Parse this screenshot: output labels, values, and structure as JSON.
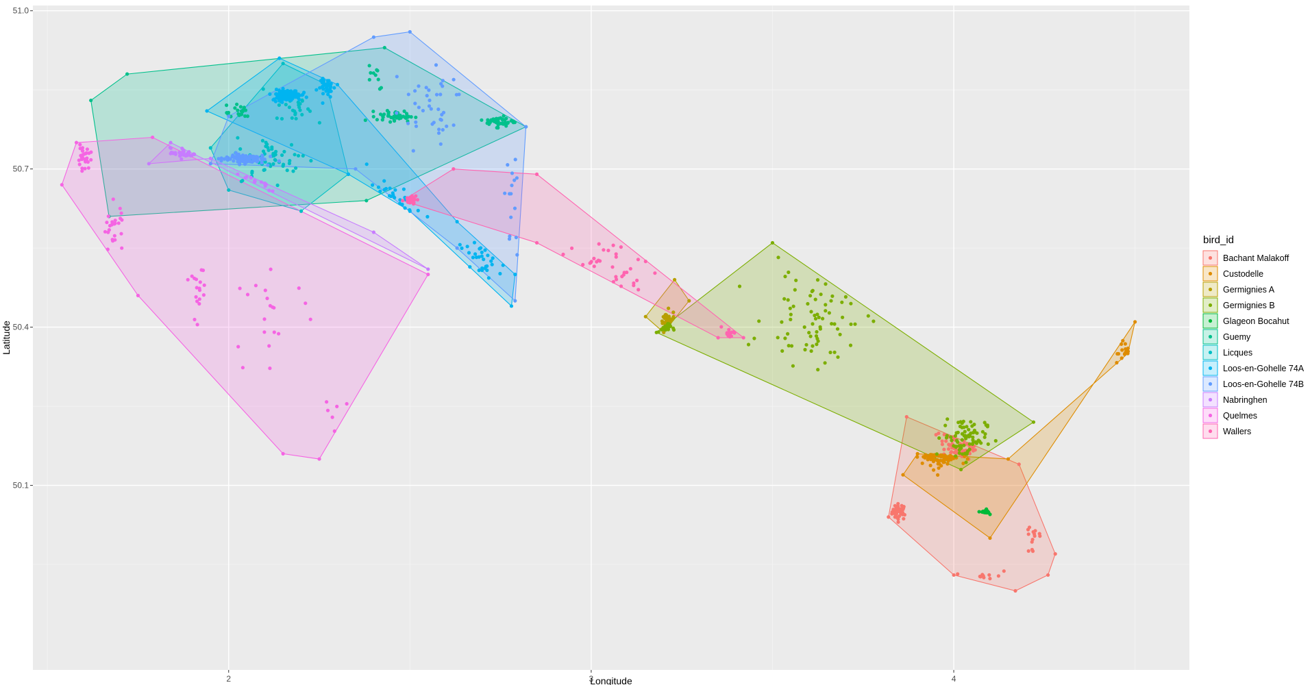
{
  "chart_data": {
    "type": "scatter",
    "subtype": "scatter with convex hull polygons per group",
    "xlabel": "Longitude",
    "ylabel": "Latitude",
    "xlim": [
      1.46,
      4.65
    ],
    "ylim": [
      49.75,
      51.01
    ],
    "x_ticks": [
      2,
      3,
      4
    ],
    "y_ticks": [
      50.1,
      50.4,
      50.7,
      51.0
    ],
    "x_tick_labels": [
      "2",
      "3",
      "4"
    ],
    "y_tick_labels": [
      "50.1",
      "50.4",
      "50.7",
      "51.0"
    ],
    "grid": true,
    "legend_title": "bird_id",
    "legend_position": "right",
    "series": [
      {
        "name": "Bachant Malakoff",
        "color": "#F8766D",
        "hull": [
          [
            3.82,
            50.04
          ],
          [
            3.87,
            50.23
          ],
          [
            4.18,
            50.14
          ],
          [
            4.28,
            49.97
          ],
          [
            4.26,
            49.93
          ],
          [
            4.17,
            49.9
          ],
          [
            4.0,
            49.93
          ]
        ],
        "clusters": [
          [
            3.85,
            50.05,
            0.02,
            0.015,
            40
          ],
          [
            4.02,
            50.18,
            0.06,
            0.03,
            60
          ],
          [
            4.22,
            50.0,
            0.03,
            0.04,
            14
          ],
          [
            4.08,
            49.93,
            0.08,
            0.01,
            10
          ]
        ]
      },
      {
        "name": "Custodelle",
        "color": "#DE8C00",
        "hull": [
          [
            3.86,
            50.12
          ],
          [
            4.1,
            50.0
          ],
          [
            4.5,
            50.41
          ],
          [
            4.48,
            50.35
          ],
          [
            4.15,
            50.15
          ],
          [
            3.9,
            50.16
          ]
        ],
        "clusters": [
          [
            3.97,
            50.18,
            0.05,
            0.03,
            70
          ],
          [
            4.47,
            50.32,
            0.03,
            0.07,
            16
          ],
          [
            4.22,
            50.24,
            0.02,
            0.02,
            5
          ]
        ]
      },
      {
        "name": "Germignies A",
        "color": "#B79F00",
        "hull": [
          [
            3.15,
            50.42
          ],
          [
            3.2,
            50.39
          ],
          [
            3.27,
            50.45
          ],
          [
            3.23,
            50.49
          ]
        ],
        "clusters": [
          [
            3.21,
            50.41,
            0.02,
            0.02,
            40
          ]
        ]
      },
      {
        "name": "Germignies B",
        "color": "#7CAE00",
        "hull": [
          [
            3.18,
            50.39
          ],
          [
            3.5,
            50.56
          ],
          [
            4.22,
            50.22
          ],
          [
            4.02,
            50.13
          ]
        ],
        "clusters": [
          [
            3.62,
            50.42,
            0.14,
            0.09,
            75
          ],
          [
            4.03,
            50.19,
            0.06,
            0.04,
            80
          ],
          [
            3.2,
            50.4,
            0.02,
            0.01,
            25
          ]
        ]
      },
      {
        "name": "Glageon Bocahut",
        "color": "#00BA38",
        "hull": [
          [
            4.07,
            50.05
          ],
          [
            4.1,
            50.045
          ],
          [
            4.09,
            50.055
          ]
        ],
        "clusters": [
          [
            4.09,
            50.05,
            0.01,
            0.003,
            40
          ]
        ]
      },
      {
        "name": "Guemy",
        "color": "#00C08B",
        "hull": [
          [
            1.62,
            50.83
          ],
          [
            1.72,
            50.88
          ],
          [
            2.43,
            50.93
          ],
          [
            2.82,
            50.78
          ],
          [
            2.38,
            50.64
          ],
          [
            1.67,
            50.61
          ]
        ],
        "clusters": [
          [
            2.46,
            50.8,
            0.05,
            0.01,
            45
          ],
          [
            2.75,
            50.79,
            0.04,
            0.01,
            45
          ],
          [
            2.02,
            50.81,
            0.05,
            0.02,
            20
          ],
          [
            2.4,
            50.88,
            0.03,
            0.03,
            10
          ]
        ]
      },
      {
        "name": "Licques",
        "color": "#00BFC4",
        "hull": [
          [
            1.95,
            50.74
          ],
          [
            2.15,
            50.9
          ],
          [
            2.27,
            50.86
          ],
          [
            2.33,
            50.69
          ],
          [
            2.2,
            50.62
          ],
          [
            2.0,
            50.66
          ]
        ],
        "clusters": [
          [
            2.12,
            50.72,
            0.1,
            0.04,
            60
          ],
          [
            2.18,
            50.82,
            0.05,
            0.03,
            30
          ]
        ]
      },
      {
        "name": "Loos-en-Gohelle 74A",
        "color": "#00B4F0",
        "hull": [
          [
            1.94,
            50.81
          ],
          [
            2.14,
            50.91
          ],
          [
            2.3,
            50.86
          ],
          [
            2.63,
            50.6
          ],
          [
            2.79,
            50.5
          ],
          [
            2.78,
            50.44
          ],
          [
            2.5,
            50.62
          ],
          [
            2.33,
            50.69
          ]
        ],
        "clusters": [
          [
            2.16,
            50.84,
            0.04,
            0.01,
            140
          ],
          [
            2.27,
            50.87,
            0.02,
            0.03,
            40
          ],
          [
            2.7,
            50.53,
            0.07,
            0.04,
            30
          ],
          [
            2.45,
            50.62,
            0.07,
            0.05,
            25
          ]
        ]
      },
      {
        "name": "Loos-en-Gohelle 74B",
        "color": "#619CFF",
        "hull": [
          [
            2.5,
            50.96
          ],
          [
            2.82,
            50.78
          ],
          [
            2.79,
            50.45
          ],
          [
            2.63,
            50.55
          ],
          [
            2.35,
            50.7
          ],
          [
            1.95,
            50.71
          ],
          [
            2.0,
            50.8
          ],
          [
            2.4,
            50.95
          ]
        ],
        "clusters": [
          [
            2.04,
            50.72,
            0.06,
            0.01,
            90
          ],
          [
            2.55,
            50.82,
            0.1,
            0.08,
            40
          ],
          [
            2.78,
            50.62,
            0.02,
            0.1,
            15
          ]
        ]
      },
      {
        "name": "Nabringhen",
        "color": "#C77CFF",
        "hull": [
          [
            1.78,
            50.71
          ],
          [
            1.84,
            50.75
          ],
          [
            2.55,
            50.51
          ],
          [
            2.4,
            50.58
          ],
          [
            1.95,
            50.72
          ]
        ],
        "clusters": [
          [
            1.88,
            50.73,
            0.04,
            0.01,
            35
          ],
          [
            1.69,
            50.66,
            0.02,
            0.02,
            45
          ],
          [
            2.14,
            50.7,
            0.09,
            0.03,
            30
          ],
          [
            1.72,
            50.62,
            0.02,
            0.01,
            15
          ]
        ]
      },
      {
        "name": "Quelmes",
        "color": "#F564E3",
        "hull": [
          [
            1.54,
            50.67
          ],
          [
            1.58,
            50.75
          ],
          [
            1.79,
            50.76
          ],
          [
            2.55,
            50.5
          ],
          [
            2.25,
            50.15
          ],
          [
            2.15,
            50.16
          ],
          [
            1.75,
            50.46
          ]
        ],
        "clusters": [
          [
            1.6,
            50.72,
            0.02,
            0.02,
            30
          ],
          [
            1.68,
            50.58,
            0.03,
            0.06,
            25
          ],
          [
            1.92,
            50.48,
            0.03,
            0.08,
            18
          ],
          [
            2.12,
            50.42,
            0.1,
            0.08,
            20
          ],
          [
            2.3,
            50.23,
            0.04,
            0.04,
            6
          ]
        ]
      },
      {
        "name": "Wallers",
        "color": "#FF64B0",
        "hull": [
          [
            2.48,
            50.64
          ],
          [
            2.62,
            50.7
          ],
          [
            2.85,
            50.69
          ],
          [
            3.42,
            50.38
          ],
          [
            3.35,
            50.38
          ],
          [
            2.85,
            50.56
          ]
        ],
        "clusters": [
          [
            2.5,
            50.64,
            0.02,
            0.01,
            40
          ],
          [
            3.05,
            50.5,
            0.15,
            0.08,
            35
          ],
          [
            3.38,
            50.39,
            0.02,
            0.01,
            12
          ]
        ]
      }
    ]
  }
}
